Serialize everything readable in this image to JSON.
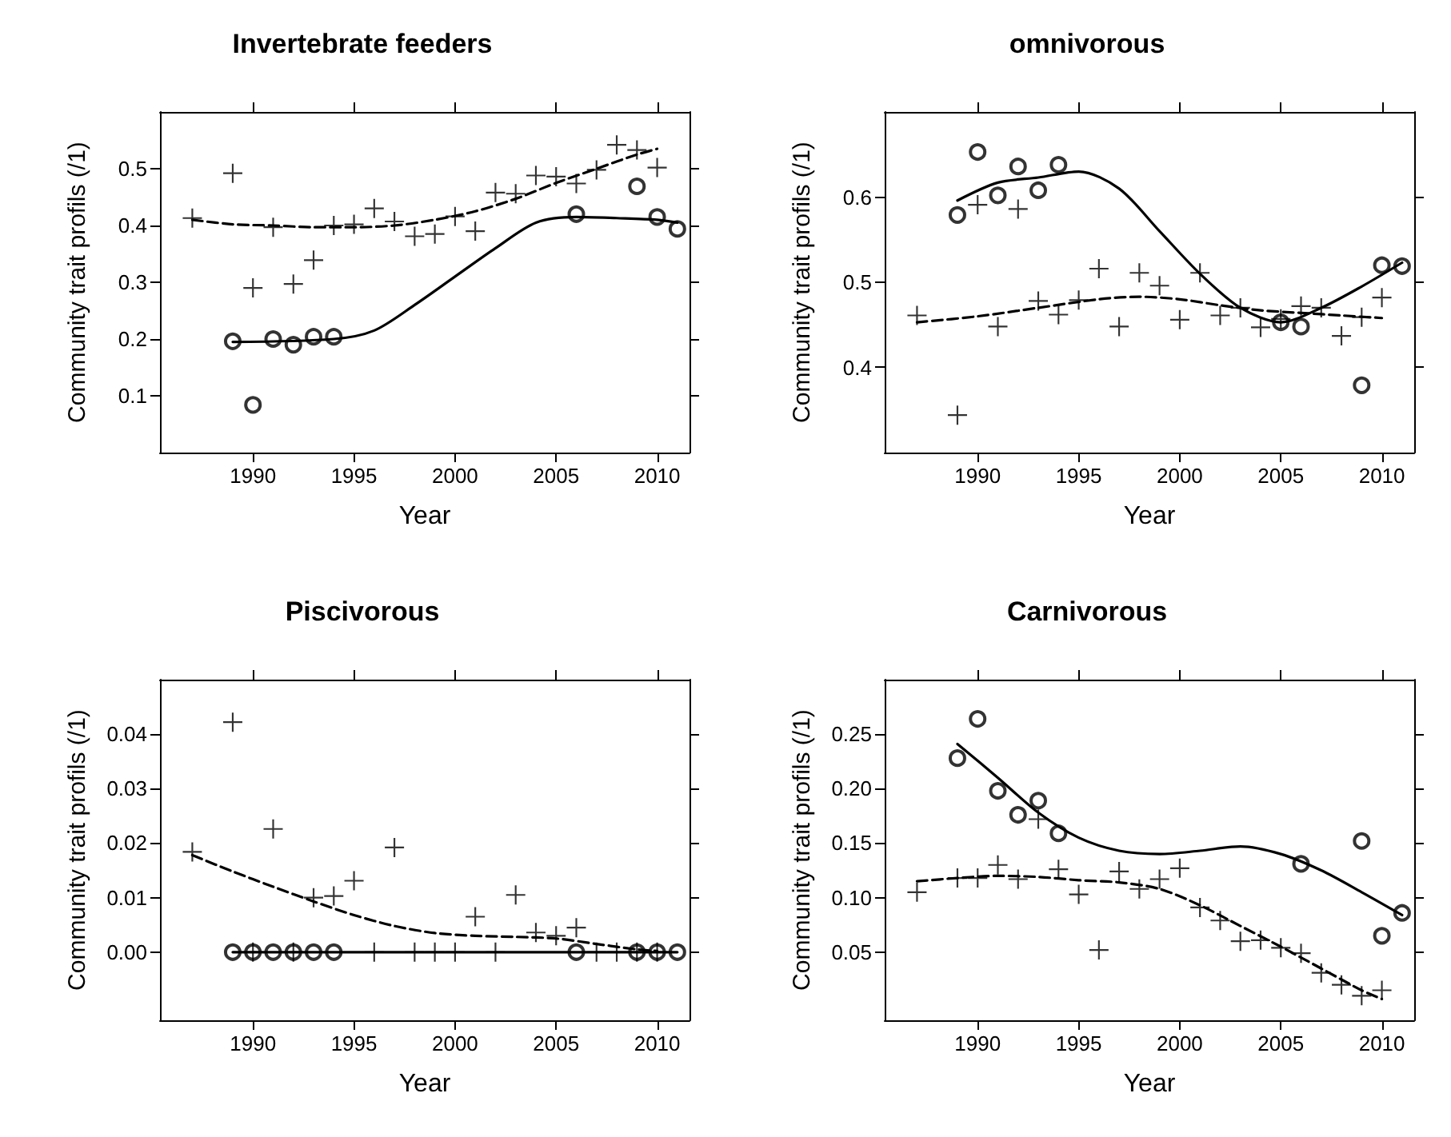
{
  "chart_data": [
    {
      "type": "scatter",
      "title": "Invertebrate feeders",
      "xlabel": "Year",
      "ylabel": "Community trait profils (/1)",
      "xlim": [
        1985.4,
        2011.6
      ],
      "ylim": [
        0,
        0.6
      ],
      "xticks": [
        1990,
        1995,
        2000,
        2005,
        2010
      ],
      "yticks": [
        0.1,
        0.2,
        0.3,
        0.4,
        0.5
      ],
      "grid": false,
      "series": [
        {
          "type": "scatter",
          "marker": "circle",
          "color": "#000000",
          "x": [
            1989,
            1990,
            1991,
            1992,
            1993,
            1994,
            2006,
            2009,
            2010,
            2011
          ],
          "values": [
            0.196,
            0.084,
            0.2,
            0.19,
            0.204,
            0.204,
            0.42,
            0.469,
            0.415,
            0.394
          ]
        },
        {
          "type": "scatter",
          "marker": "cross",
          "color": "#000000",
          "x": [
            1987,
            1989,
            1990,
            1991,
            1992,
            1993,
            1994,
            1995,
            1996,
            1997,
            1998,
            1999,
            2000,
            2001,
            2002,
            2003,
            2004,
            2005,
            2006,
            2007,
            2008,
            2009,
            2010
          ],
          "values": [
            0.413,
            0.492,
            0.29,
            0.397,
            0.297,
            0.339,
            0.4,
            0.402,
            0.43,
            0.407,
            0.381,
            0.385,
            0.416,
            0.39,
            0.458,
            0.456,
            0.488,
            0.486,
            0.474,
            0.498,
            0.542,
            0.533,
            0.502
          ]
        },
        {
          "type": "line",
          "line_style": "solid",
          "color": "#000000",
          "x": [
            1989,
            1994,
            1996,
            1998,
            2000,
            2002,
            2004,
            2006,
            2008,
            2010,
            2011
          ],
          "values": [
            0.195,
            0.2,
            0.215,
            0.26,
            0.31,
            0.36,
            0.405,
            0.415,
            0.413,
            0.41,
            0.405
          ]
        },
        {
          "type": "line",
          "line_style": "dashed",
          "color": "#000000",
          "x": [
            1987,
            1989,
            1991,
            1993,
            1995,
            1997,
            1999,
            2001,
            2003,
            2005,
            2007,
            2009,
            2010
          ],
          "values": [
            0.41,
            0.402,
            0.4,
            0.397,
            0.397,
            0.4,
            0.41,
            0.425,
            0.447,
            0.475,
            0.5,
            0.525,
            0.535
          ]
        }
      ]
    },
    {
      "type": "scatter",
      "title": "omnivorous",
      "xlabel": "Year",
      "ylabel": "Community trait profils (/1)",
      "xlim": [
        1985.4,
        2011.6
      ],
      "ylim": [
        0.3,
        0.7
      ],
      "xticks": [
        1990,
        1995,
        2000,
        2005,
        2010
      ],
      "yticks": [
        0.4,
        0.5,
        0.6
      ],
      "grid": false,
      "series": [
        {
          "type": "scatter",
          "marker": "circle",
          "color": "#000000",
          "x": [
            1989,
            1990,
            1991,
            1992,
            1993,
            1994,
            2005,
            2006,
            2009,
            2010,
            2011
          ],
          "values": [
            0.579,
            0.653,
            0.602,
            0.636,
            0.608,
            0.638,
            0.453,
            0.448,
            0.379,
            0.52,
            0.519
          ]
        },
        {
          "type": "scatter",
          "marker": "cross",
          "color": "#000000",
          "x": [
            1987,
            1989,
            1990,
            1991,
            1992,
            1993,
            1994,
            1995,
            1996,
            1997,
            1998,
            1999,
            2000,
            2001,
            2002,
            2003,
            2004,
            2005,
            2006,
            2007,
            2008,
            2009,
            2010
          ],
          "values": [
            0.461,
            0.344,
            0.591,
            0.448,
            0.586,
            0.478,
            0.462,
            0.479,
            0.516,
            0.448,
            0.511,
            0.496,
            0.456,
            0.511,
            0.461,
            0.47,
            0.447,
            0.457,
            0.472,
            0.47,
            0.437,
            0.459,
            0.482
          ]
        },
        {
          "type": "line",
          "line_style": "solid",
          "color": "#000000",
          "x": [
            1989,
            1991,
            1993,
            1995,
            1997,
            1999,
            2001,
            2003,
            2005,
            2007,
            2009,
            2011
          ],
          "values": [
            0.596,
            0.617,
            0.623,
            0.63,
            0.61,
            0.56,
            0.51,
            0.47,
            0.453,
            0.47,
            0.495,
            0.523
          ]
        },
        {
          "type": "line",
          "line_style": "dashed",
          "color": "#000000",
          "x": [
            1987,
            1990,
            1993,
            1996,
            1998,
            2000,
            2002,
            2004,
            2006,
            2008,
            2010
          ],
          "values": [
            0.453,
            0.46,
            0.47,
            0.48,
            0.483,
            0.48,
            0.473,
            0.467,
            0.464,
            0.461,
            0.458
          ]
        }
      ]
    },
    {
      "type": "scatter",
      "title": "Piscivorous",
      "xlabel": "Year",
      "ylabel": "Community trait profils (/1)",
      "xlim": [
        1985.4,
        2011.6
      ],
      "ylim": [
        -0.0125,
        0.05
      ],
      "xticks": [
        1990,
        1995,
        2000,
        2005,
        2010
      ],
      "yticks": [
        {
          "value": 0,
          "label": "0.00"
        },
        {
          "value": 0.01,
          "label": "0.01"
        },
        {
          "value": 0.02,
          "label": "0.02"
        },
        {
          "value": 0.03,
          "label": "0.03"
        },
        {
          "value": 0.04,
          "label": "0.04"
        }
      ],
      "grid": false,
      "series": [
        {
          "type": "scatter",
          "marker": "circle",
          "color": "#000000",
          "x": [
            1989,
            1990,
            1991,
            1992,
            1993,
            1994,
            2006,
            2009,
            2010,
            2011
          ],
          "values": [
            0,
            0,
            0,
            0,
            0,
            0,
            0,
            0,
            0,
            0
          ]
        },
        {
          "type": "scatter",
          "marker": "cross",
          "color": "#000000",
          "x": [
            1987,
            1989,
            1990,
            1991,
            1992,
            1993,
            1994,
            1995,
            1996,
            1997,
            1998,
            1999,
            2000,
            2001,
            2002,
            2003,
            2004,
            2005,
            2006,
            2007,
            2008,
            2009,
            2010
          ],
          "values": [
            0.0184,
            0.0422,
            0,
            0.0226,
            0,
            0.01,
            0.0103,
            0.0131,
            0,
            0.0192,
            0,
            0,
            0,
            0.0065,
            0,
            0.0105,
            0.0036,
            0.003,
            0.0045,
            0,
            0,
            0,
            0
          ]
        },
        {
          "type": "line",
          "line_style": "solid",
          "color": "#000000",
          "x": [
            1989,
            2011
          ],
          "values": [
            0,
            0
          ]
        },
        {
          "type": "line",
          "line_style": "dashed",
          "color": "#000000",
          "x": [
            1987,
            1989,
            1991,
            1993,
            1995,
            1997,
            1999,
            2001,
            2003,
            2005,
            2007,
            2009,
            2010
          ],
          "values": [
            0.0178,
            0.0148,
            0.012,
            0.0093,
            0.0068,
            0.0048,
            0.0035,
            0.003,
            0.0028,
            0.0025,
            0.0015,
            0.0005,
            0.0002
          ]
        }
      ]
    },
    {
      "type": "scatter",
      "title": "Carnivorous",
      "xlabel": "Year",
      "ylabel": "Community trait profils (/1)",
      "xlim": [
        1985.4,
        2011.6
      ],
      "ylim": [
        -0.0125,
        0.3
      ],
      "xticks": [
        1990,
        1995,
        2000,
        2005,
        2010
      ],
      "yticks": [
        {
          "value": 0.05,
          "label": "0.05"
        },
        {
          "value": 0.1,
          "label": "0.10"
        },
        {
          "value": 0.15,
          "label": "0.15"
        },
        {
          "value": 0.2,
          "label": "0.20"
        },
        {
          "value": 0.25,
          "label": "0.25"
        }
      ],
      "grid": false,
      "series": [
        {
          "type": "scatter",
          "marker": "circle",
          "color": "#000000",
          "x": [
            1989,
            1990,
            1991,
            1992,
            1993,
            1994,
            2006,
            2009,
            2010,
            2011
          ],
          "values": [
            0.228,
            0.264,
            0.198,
            0.176,
            0.189,
            0.159,
            0.131,
            0.152,
            0.065,
            0.086
          ]
        },
        {
          "type": "scatter",
          "marker": "cross",
          "color": "#000000",
          "x": [
            1987,
            1989,
            1990,
            1991,
            1992,
            1993,
            1994,
            1995,
            1996,
            1997,
            1998,
            1999,
            2000,
            2001,
            2002,
            2003,
            2004,
            2005,
            2006,
            2007,
            2008,
            2009,
            2010
          ],
          "values": [
            0.105,
            0.118,
            0.118,
            0.13,
            0.117,
            0.172,
            0.126,
            0.103,
            0.052,
            0.124,
            0.108,
            0.117,
            0.127,
            0.091,
            0.079,
            0.06,
            0.061,
            0.054,
            0.049,
            0.031,
            0.02,
            0.01,
            0.015
          ]
        },
        {
          "type": "line",
          "line_style": "solid",
          "color": "#000000",
          "x": [
            1989,
            1991,
            1993,
            1995,
            1997,
            1999,
            2001,
            2003,
            2005,
            2007,
            2009,
            2011
          ],
          "values": [
            0.241,
            0.21,
            0.178,
            0.155,
            0.143,
            0.14,
            0.143,
            0.147,
            0.14,
            0.125,
            0.105,
            0.084
          ]
        },
        {
          "type": "line",
          "line_style": "dashed",
          "color": "#000000",
          "x": [
            1987,
            1989,
            1991,
            1993,
            1995,
            1997,
            1999,
            2001,
            2003,
            2005,
            2007,
            2009,
            2010
          ],
          "values": [
            0.115,
            0.118,
            0.12,
            0.119,
            0.116,
            0.114,
            0.108,
            0.093,
            0.074,
            0.055,
            0.035,
            0.015,
            0.007
          ]
        }
      ]
    }
  ]
}
